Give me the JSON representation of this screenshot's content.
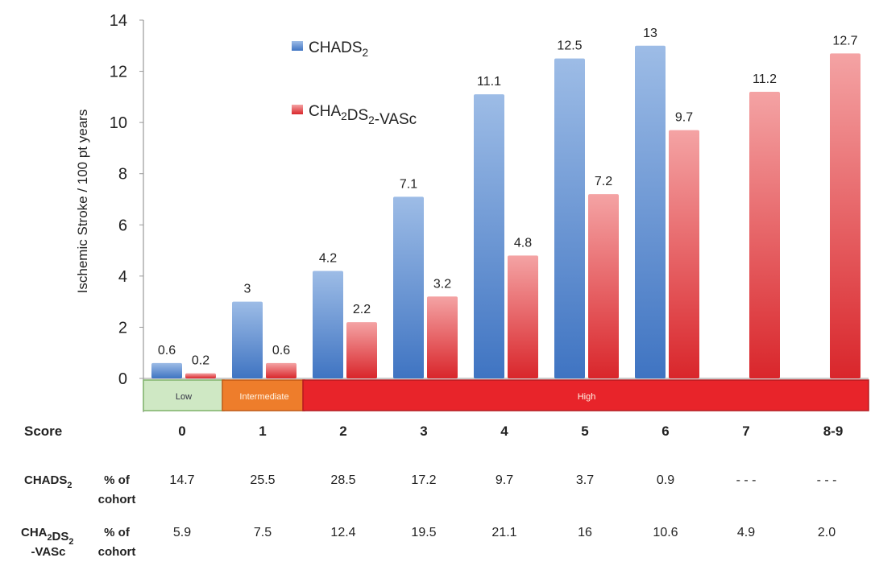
{
  "chart_data": {
    "type": "bar",
    "ylabel": "Ischemic Stroke / 100 pt years",
    "ylim": [
      0,
      14
    ],
    "yticks": [
      "0",
      "2",
      "4",
      "6",
      "8",
      "10",
      "12",
      "14"
    ],
    "categories": [
      "0",
      "1",
      "2",
      "3",
      "4",
      "5",
      "6",
      "7",
      "8-9"
    ],
    "series": [
      {
        "name": "CHADS",
        "name_sub": "2",
        "color": "#4a7fc9",
        "values": [
          0.6,
          3,
          4.2,
          7.1,
          11.1,
          12.5,
          13,
          null,
          null
        ],
        "labels": [
          "0.6",
          "3",
          "4.2",
          "7.1",
          "11.1",
          "12.5",
          "13",
          "",
          ""
        ]
      },
      {
        "name_parts": [
          [
            "CHA",
            false
          ],
          [
            "2",
            true
          ],
          [
            "DS",
            false
          ],
          [
            "2",
            true
          ],
          [
            "-VASc",
            false
          ]
        ],
        "color": "#e0383c",
        "values": [
          0.2,
          0.6,
          2.2,
          3.2,
          4.8,
          7.2,
          9.7,
          11.2,
          12.7
        ],
        "labels": [
          "0.2",
          "0.6",
          "2.2",
          "3.2",
          "4.8",
          "7.2",
          "9.7",
          "11.2",
          "12.7"
        ]
      }
    ],
    "legend_position": "top-left",
    "risk_bands": [
      {
        "label": "Low",
        "color": "#cfe8c4",
        "border": "#7fb26a",
        "from_category": 0,
        "to_category": 0
      },
      {
        "label": "Intermediate",
        "color": "#ee7d2b",
        "border": "#c05a14",
        "from_category": 1,
        "to_category": 1
      },
      {
        "label": "High",
        "color": "#e8242a",
        "border": "#b51a1f",
        "from_category": 2,
        "to_category": 8
      }
    ]
  },
  "table": {
    "score_label": "Score",
    "row1_label_parts": [
      [
        "CHADS",
        false
      ],
      [
        "2",
        true
      ]
    ],
    "row2_label_line1_parts": [
      [
        "CHA",
        false
      ],
      [
        "2",
        true
      ],
      [
        "DS",
        false
      ],
      [
        "2",
        true
      ]
    ],
    "row2_label_line2": "-VASc",
    "pct_label_line1": "% of",
    "pct_label_line2": "cohort",
    "chads2_values": [
      "14.7",
      "25.5",
      "28.5",
      "17.2",
      "9.7",
      "3.7",
      "0.9",
      "- - -",
      "- - -"
    ],
    "vasc_values": [
      "5.9",
      "7.5",
      "12.4",
      "19.5",
      "21.1",
      "16",
      "10.6",
      "4.9",
      "2.0"
    ]
  }
}
